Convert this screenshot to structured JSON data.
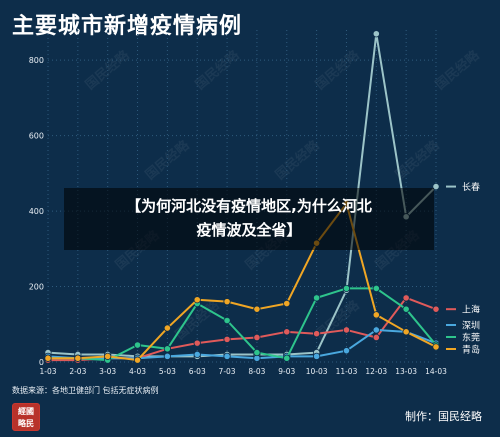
{
  "header": {
    "title": "主要城市新增疫情病例"
  },
  "footer": {
    "source": "数据来源：各地卫健部门 包括无症状病例",
    "credit": "制作：国民经略",
    "seal_text": "经略国民"
  },
  "overlay": {
    "line1": "【为何河北没有疫情地区,为什么河北",
    "line2": "疫情波及全省】"
  },
  "watermark": "国民经略",
  "colors": {
    "background": "#0d2d4a",
    "grid": "#2f5b7d",
    "axis_text": "#e8eef4"
  },
  "chart_data": {
    "type": "line",
    "title": "主要城市新增疫情病例",
    "x": [
      "1-03",
      "2-03",
      "3-03",
      "4-03",
      "5-03",
      "6-03",
      "7-03",
      "8-03",
      "9-03",
      "10-03",
      "11-03",
      "12-03",
      "13-03",
      "14-03"
    ],
    "yticks": [
      0,
      200,
      400,
      600,
      800
    ],
    "ylim": [
      0,
      880
    ],
    "grid": true,
    "legend_placement": "right, at line ends",
    "series": [
      {
        "name": "长春",
        "color": "#9cc4c8",
        "values": [
          25,
          20,
          20,
          15,
          15,
          15,
          20,
          20,
          20,
          25,
          190,
          870,
          385,
          465
        ]
      },
      {
        "name": "上海",
        "color": "#e05a5a",
        "values": [
          5,
          5,
          10,
          10,
          35,
          50,
          60,
          65,
          80,
          75,
          85,
          65,
          170,
          140
        ]
      },
      {
        "name": "深圳",
        "color": "#4aa8de",
        "values": [
          15,
          10,
          10,
          10,
          15,
          20,
          15,
          10,
          15,
          15,
          30,
          85,
          80,
          50
        ]
      },
      {
        "name": "东莞",
        "color": "#2ec48c",
        "values": [
          10,
          10,
          5,
          45,
          35,
          155,
          110,
          25,
          10,
          170,
          195,
          195,
          140,
          45
        ]
      },
      {
        "name": "青岛",
        "color": "#f0a624",
        "values": [
          10,
          10,
          15,
          5,
          90,
          165,
          160,
          140,
          155,
          315,
          420,
          125,
          80,
          40
        ]
      }
    ]
  }
}
